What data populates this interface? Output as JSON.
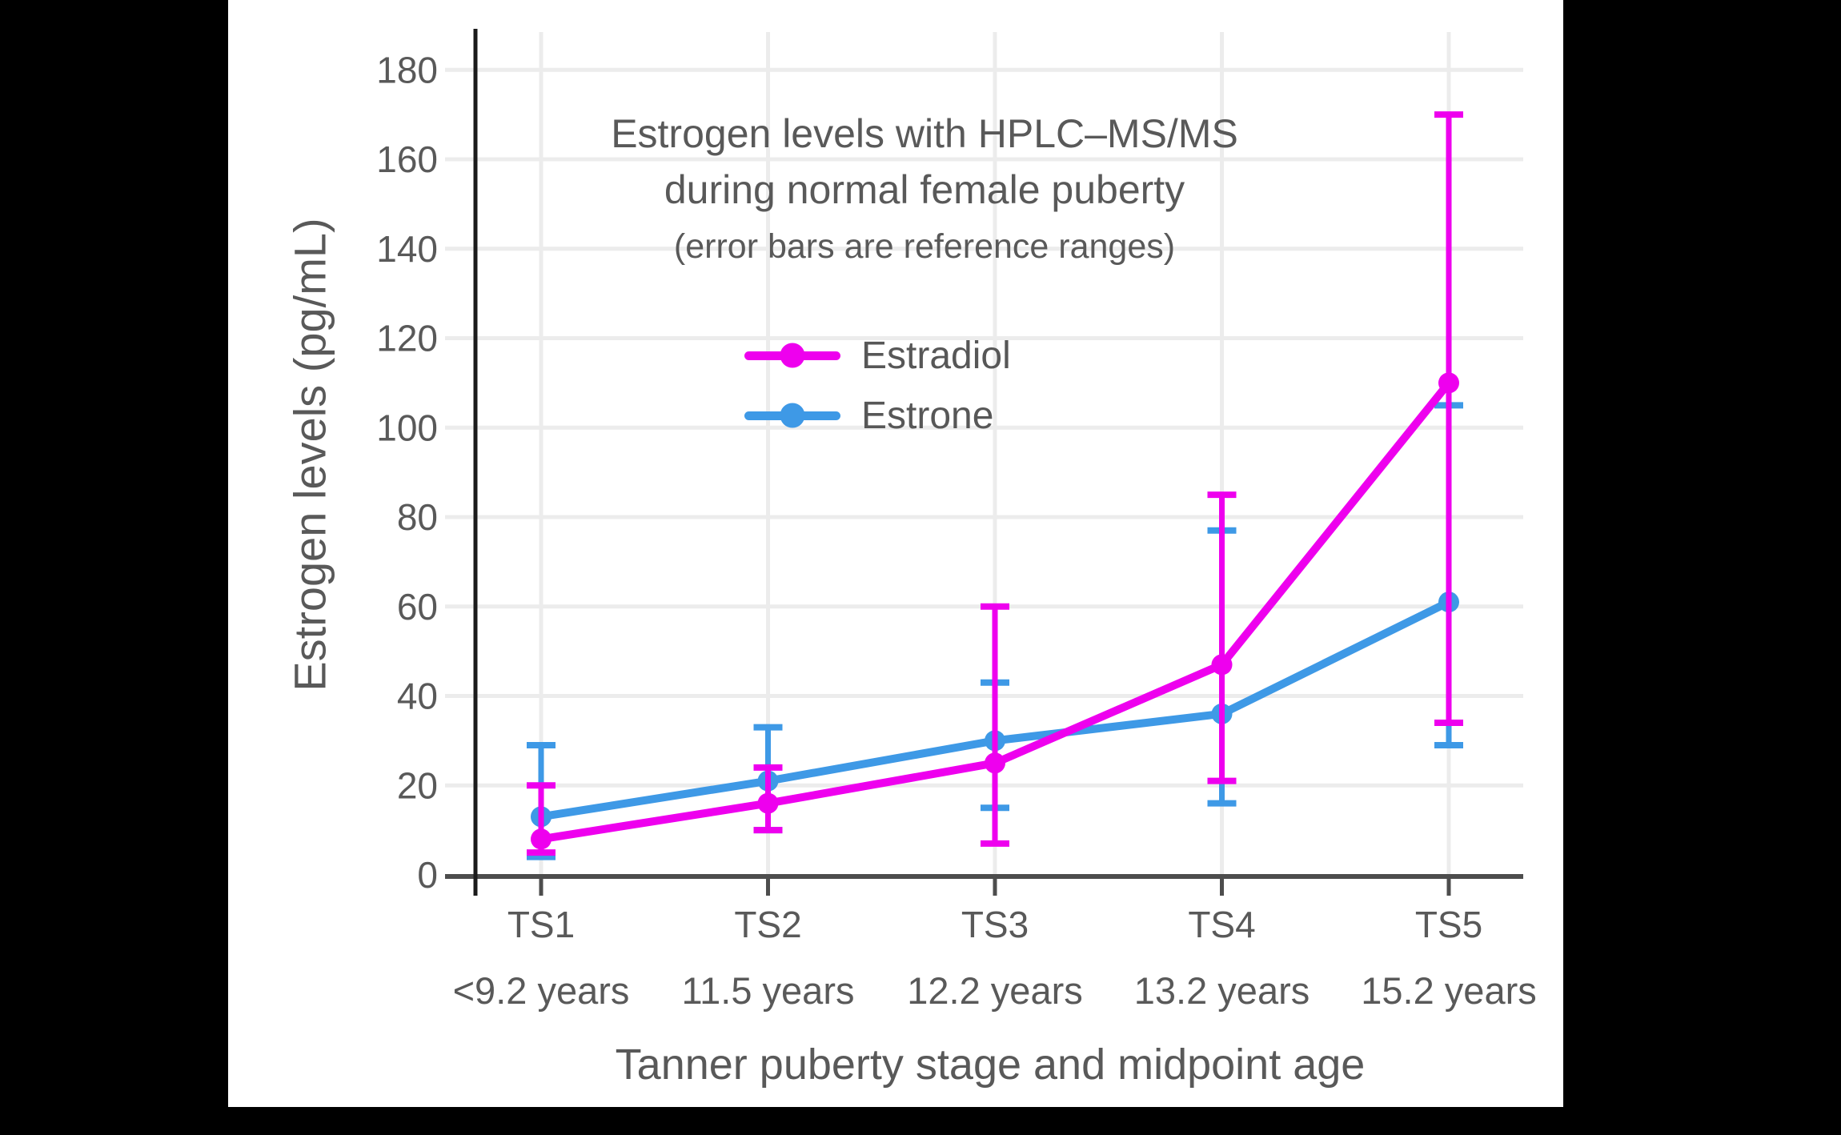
{
  "labels": {
    "title_line1": "Estrogen levels with HPLC–MS/MS",
    "title_line2": "during normal female puberty"
  },
  "chart_data": {
    "type": "line",
    "title": "Estrogen levels with HPLC–MS/MS during normal female puberty",
    "subtitle": "(error bars are reference ranges)",
    "xlabel": "Tanner puberty stage and midpoint age",
    "ylabel": "Estrogen levels (pg/mL)",
    "categories": [
      "TS1",
      "TS2",
      "TS3",
      "TS4",
      "TS5"
    ],
    "category_sublabels": [
      "<9.2 years",
      "11.5 years",
      "12.2 years",
      "13.2 years",
      "15.2 years"
    ],
    "series": [
      {
        "name": "Estradiol",
        "color": "#ee00ee",
        "values": [
          8,
          16,
          25,
          47,
          110
        ],
        "error_low": [
          5,
          10,
          7,
          21,
          34
        ],
        "error_high": [
          20,
          24,
          60,
          85,
          170
        ]
      },
      {
        "name": "Estrone",
        "color": "#3e99e6",
        "values": [
          13,
          21,
          30,
          36,
          61
        ],
        "error_low": [
          4,
          10,
          15,
          16,
          29
        ],
        "error_high": [
          29,
          33,
          43,
          77,
          105
        ]
      }
    ],
    "ylim": [
      0,
      180
    ],
    "ytick_step": 20,
    "grid": true,
    "legend_position": "upper-left-of-center",
    "style": {
      "text_color": "#595959",
      "grid_color": "#ececec",
      "x_axis_color": "#4d4d4d",
      "y_axis_color": "#1b1b1b",
      "background": "#ffffff",
      "frame": "#000000"
    }
  }
}
